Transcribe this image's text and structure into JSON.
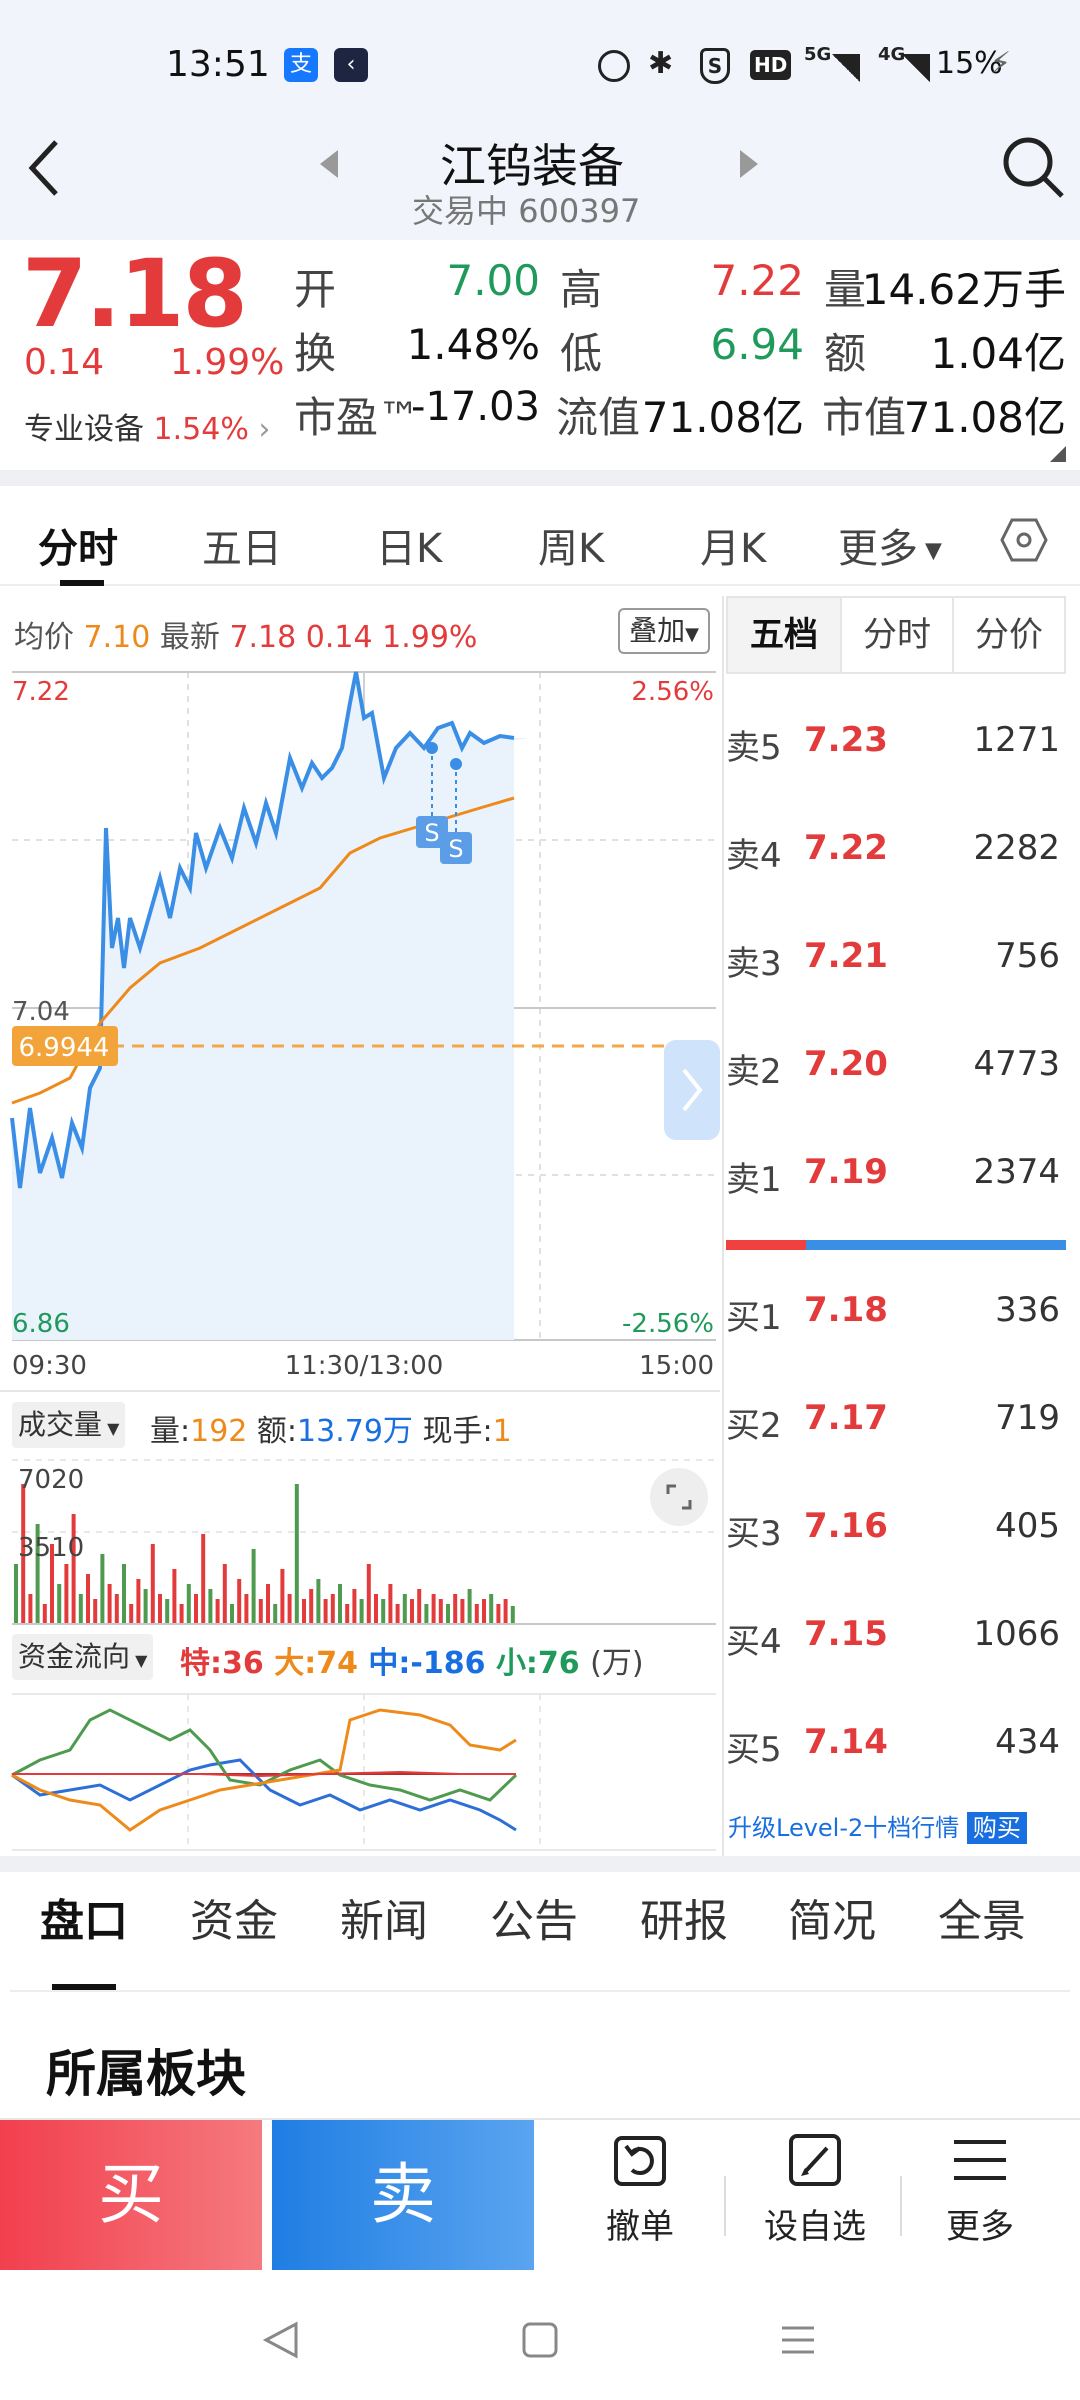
{
  "status": {
    "time": "13:51",
    "battery": "15%",
    "net1": "5G",
    "net2": "4G",
    "hd": "HD"
  },
  "header": {
    "name": "江钨装备",
    "state": "交易中",
    "code": "600397"
  },
  "quote": {
    "price": "7.18",
    "change": "0.14",
    "pct": "1.99%",
    "sector": "专业设备",
    "sector_pct": "1.54%",
    "open_l": "开",
    "open": "7.00",
    "high_l": "高",
    "high": "7.22",
    "vol_l": "量",
    "vol": "14.62万手",
    "turn_l": "换",
    "turn": "1.48%",
    "low_l": "低",
    "low": "6.94",
    "amt_l": "额",
    "amt": "1.04亿",
    "pe_l": "市盈™",
    "pe": "-17.03",
    "fv_l": "流值",
    "fv": "71.08亿",
    "mv_l": "市值",
    "mv": "71.08亿"
  },
  "tabs": [
    "分时",
    "五日",
    "日K",
    "周K",
    "月K",
    "更多"
  ],
  "info": {
    "avg_l": "均价",
    "avg": "7.10",
    "last_l": "最新",
    "last": "7.18",
    "chg": "0.14",
    "pct": "1.99%",
    "overlay": "叠加"
  },
  "chart": {
    "ymax": "7.22",
    "ymid": "7.04",
    "ymin": "6.86",
    "pmax": "2.56%",
    "pmin": "-2.56%",
    "cursor": "6.9944",
    "t0": "09:30",
    "t1": "11:30/13:00",
    "t2": "15:00",
    "s": "S"
  },
  "vol": {
    "label": "成交量",
    "q_l": "量:",
    "q": "192",
    "a_l": "额:",
    "a": "13.79万",
    "h_l": "现手:",
    "h": "1",
    "t1": "7020",
    "t2": "3510"
  },
  "flow": {
    "label": "资金流向",
    "te": "特:36",
    "da": "大:74",
    "zh": "中:-186",
    "xi": "小:76",
    "unit": "(万)"
  },
  "side": {
    "tabs": [
      "五档",
      "分时",
      "分价"
    ],
    "asks": [
      {
        "l": "卖5",
        "p": "7.23",
        "v": "1271"
      },
      {
        "l": "卖4",
        "p": "7.22",
        "v": "2282"
      },
      {
        "l": "卖3",
        "p": "7.21",
        "v": "756"
      },
      {
        "l": "卖2",
        "p": "7.20",
        "v": "4773"
      },
      {
        "l": "卖1",
        "p": "7.19",
        "v": "2374"
      }
    ],
    "bids": [
      {
        "l": "买1",
        "p": "7.18",
        "v": "336"
      },
      {
        "l": "买2",
        "p": "7.17",
        "v": "719"
      },
      {
        "l": "买3",
        "p": "7.16",
        "v": "405"
      },
      {
        "l": "买4",
        "p": "7.15",
        "v": "1066"
      },
      {
        "l": "买5",
        "p": "7.14",
        "v": "434"
      }
    ],
    "upgrade": "升级Level-2十档行情",
    "buy": "购买"
  },
  "btabs": [
    "盘口",
    "资金",
    "新闻",
    "公告",
    "研报",
    "简况",
    "全景"
  ],
  "section": "所属板块",
  "actions": {
    "buy": "买",
    "sell": "卖",
    "cancel": "撤单",
    "watch": "设自选",
    "more": "更多"
  },
  "colors": {
    "up": "#e33b3b",
    "down": "#1f9a5a",
    "line": "#3a8ee6",
    "avg": "#ee8a1a",
    "buy": "#f2404e",
    "sell": "#1f7ee3"
  }
}
